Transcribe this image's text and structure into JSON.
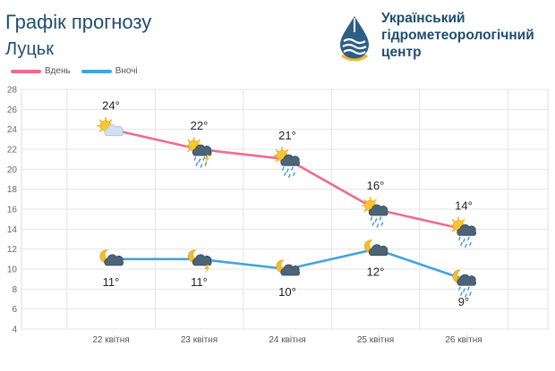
{
  "header": {
    "title": "Графік прогнозу",
    "city": "Луцьк"
  },
  "logo": {
    "line1": "Український",
    "line2": "гідрометеорологічний",
    "line3": "центр"
  },
  "colors": {
    "day": "#f06b8b",
    "night": "#41a4e1",
    "grid": "#e4e4e4",
    "title": "#1f4e6e"
  },
  "chart_data": {
    "type": "line",
    "categories": [
      "22 квітня",
      "23 квітня",
      "24 квітня",
      "25 квітня",
      "26 квітня"
    ],
    "series": [
      {
        "name": "Вдень",
        "values": [
          24,
          22,
          21,
          16,
          14
        ],
        "labels": [
          "24°",
          "22°",
          "21°",
          "16°",
          "14°"
        ],
        "icons": [
          "sun-cloud-icon",
          "sun-cloud-rain-thunder-icon",
          "sun-cloud-rain-icon",
          "sun-cloud-rain-icon",
          "sun-cloud-rain-icon"
        ]
      },
      {
        "name": "Вночі",
        "values": [
          11,
          11,
          10,
          12,
          9
        ],
        "labels": [
          "11°",
          "11°",
          "10°",
          "12°",
          "9°"
        ],
        "icons": [
          "moon-cloud-icon",
          "moon-cloud-thunder-icon",
          "moon-cloud-icon",
          "moon-cloud-icon",
          "moon-cloud-rain-icon"
        ]
      }
    ],
    "yticks": [
      4,
      6,
      8,
      10,
      12,
      14,
      16,
      18,
      20,
      22,
      24,
      26,
      28
    ],
    "ylim": [
      4,
      28
    ],
    "grid": true,
    "legend": "top-left"
  }
}
